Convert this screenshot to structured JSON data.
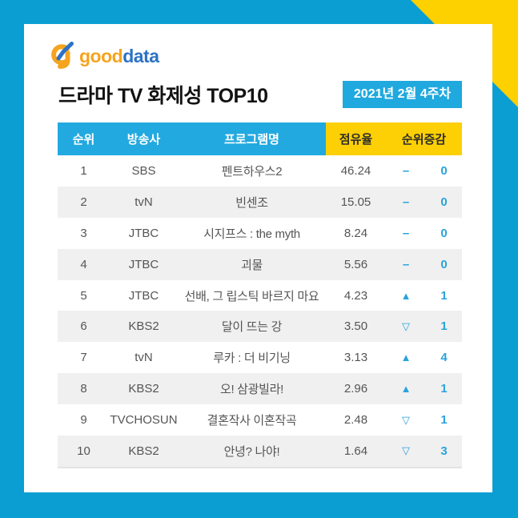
{
  "logo": {
    "icon": "g-swoosh-icon",
    "good": "good",
    "data": "data"
  },
  "header": {
    "title": "드라마 TV 화제성 TOP10",
    "badge": "2021년 2월 4주차"
  },
  "chart_data": {
    "type": "table",
    "title": "드라마 TV 화제성 TOP10",
    "period": "2021년 2월 4주차",
    "columns": [
      "순위",
      "방송사",
      "프로그램명",
      "점유율",
      "순위증감"
    ],
    "rows": [
      {
        "rank": "1",
        "network": "SBS",
        "program": "펜트하우스2",
        "share": "46.24",
        "change": "same",
        "change_symbol": "–",
        "change_value": "0"
      },
      {
        "rank": "2",
        "network": "tvN",
        "program": "빈센조",
        "share": "15.05",
        "change": "same",
        "change_symbol": "–",
        "change_value": "0"
      },
      {
        "rank": "3",
        "network": "JTBC",
        "program": "시지프스 : the myth",
        "share": "8.24",
        "change": "same",
        "change_symbol": "–",
        "change_value": "0"
      },
      {
        "rank": "4",
        "network": "JTBC",
        "program": "괴물",
        "share": "5.56",
        "change": "same",
        "change_symbol": "–",
        "change_value": "0"
      },
      {
        "rank": "5",
        "network": "JTBC",
        "program": "선배, 그 립스틱 바르지 마요",
        "share": "4.23",
        "change": "up",
        "change_symbol": "▲",
        "change_value": "1"
      },
      {
        "rank": "6",
        "network": "KBS2",
        "program": "달이 뜨는 강",
        "share": "3.50",
        "change": "down",
        "change_symbol": "▽",
        "change_value": "1"
      },
      {
        "rank": "7",
        "network": "tvN",
        "program": "루카 : 더 비기닝",
        "share": "3.13",
        "change": "up",
        "change_symbol": "▲",
        "change_value": "4"
      },
      {
        "rank": "8",
        "network": "KBS2",
        "program": "오! 삼광빌라!",
        "share": "2.96",
        "change": "up",
        "change_symbol": "▲",
        "change_value": "1"
      },
      {
        "rank": "9",
        "network": "TVCHOSUN",
        "program": "결혼작사 이혼작곡",
        "share": "2.48",
        "change": "down",
        "change_symbol": "▽",
        "change_value": "1"
      },
      {
        "rank": "10",
        "network": "KBS2",
        "program": "안녕? 나야!",
        "share": "1.64",
        "change": "down",
        "change_symbol": "▽",
        "change_value": "3"
      }
    ]
  },
  "colors": {
    "background_cyan": "#0a9ed3",
    "accent_yellow": "#fdd000",
    "header_cyan": "#22a9e0",
    "badge_cyan": "#1fa9de",
    "row_stripe": "#f0f0f0",
    "change_cyan": "#29a3dc",
    "logo_orange": "#f5a41f",
    "logo_blue": "#2d72c4",
    "body_text": "#555555"
  }
}
